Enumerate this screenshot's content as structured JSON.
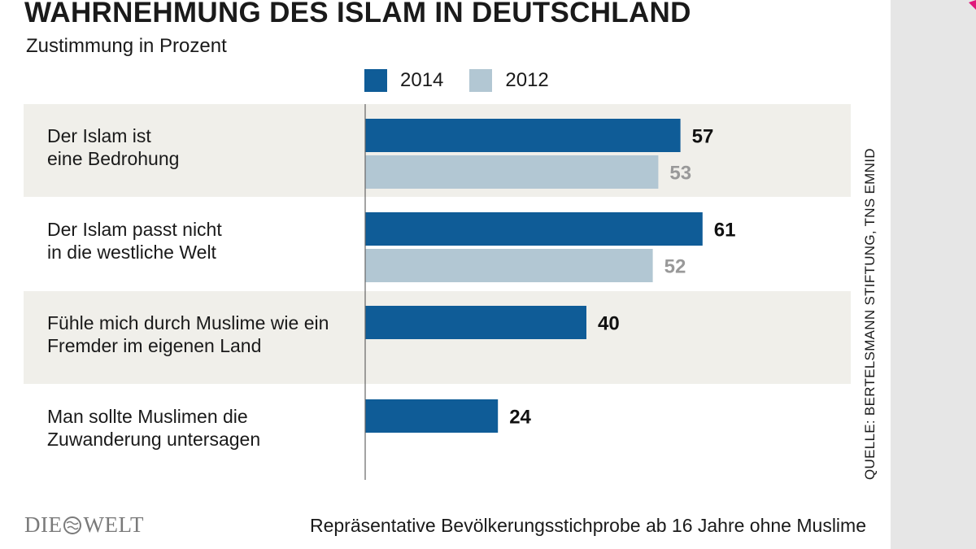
{
  "title": "WAHRNEHMUNG DES ISLAM IN DEUTSCHLAND",
  "subtitle": "Zustimmung in Prozent",
  "source": "QUELLE: BERTELSMANN STIFTUNG, TNS EMNID",
  "footnote": "Repräsentative Bevölkerungsstichprobe ab 16 Jahre ohne Muslime",
  "logo": {
    "text_left": "DIE",
    "text_right": "WELT"
  },
  "colors": {
    "series_2014": "#0f5c97",
    "series_2012": "#b2c7d3",
    "band": "#f0efea",
    "value_2014": "#111111",
    "value_2012": "#999999",
    "side_panel": "#e6e6e6",
    "accent": "#e0177a"
  },
  "icons": {
    "logo_globe": "globe-icon"
  },
  "chart_data": {
    "type": "bar",
    "orientation": "horizontal",
    "categories": [
      [
        "Der Islam ist",
        "eine Bedrohung"
      ],
      [
        "Der Islam passt nicht",
        "in die westliche Welt"
      ],
      [
        "Fühle mich durch Muslime wie ein",
        "Fremder im eigenen Land"
      ],
      [
        "Man sollte Muslimen die",
        "Zuwanderung untersagen"
      ]
    ],
    "series": [
      {
        "name": "2014",
        "values": [
          57,
          61,
          40,
          24
        ]
      },
      {
        "name": "2012",
        "values": [
          53,
          52,
          null,
          null
        ]
      }
    ],
    "xlim": [
      0,
      100
    ],
    "legend_position": "top",
    "grid": false
  }
}
